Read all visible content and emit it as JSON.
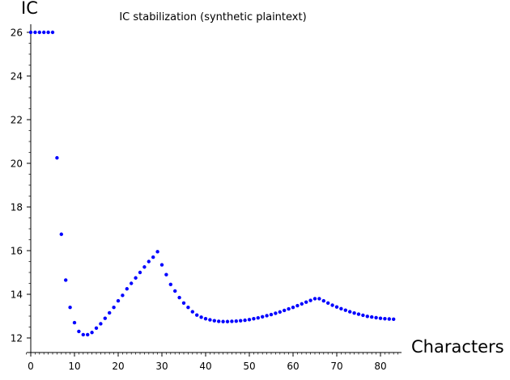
{
  "chart_data": {
    "type": "scatter",
    "title": "IC stabilization (synthetic plaintext)",
    "xlabel": "Characters",
    "ylabel": "IC",
    "xlim": [
      -1,
      84
    ],
    "ylim": [
      11.8,
      26.3
    ],
    "x_ticks": [
      0,
      10,
      20,
      30,
      40,
      50,
      60,
      70,
      80
    ],
    "y_ticks": [
      12,
      14,
      16,
      18,
      20,
      22,
      24,
      26
    ],
    "grid": false,
    "marker_color": "#0000ff",
    "series": [
      {
        "x": [
          0,
          1,
          2,
          3,
          4,
          5,
          6,
          7,
          8,
          9,
          10,
          11,
          12,
          13,
          14,
          15,
          16,
          17,
          18,
          19,
          20,
          21,
          22,
          23,
          24,
          25,
          26,
          27,
          28,
          29,
          30,
          31,
          32,
          33,
          34,
          35,
          36,
          37,
          38,
          39,
          40,
          41,
          42,
          43,
          44,
          45,
          46,
          47,
          48,
          49,
          50,
          51,
          52,
          53,
          54,
          55,
          56,
          57,
          58,
          59,
          60,
          61,
          62,
          63,
          64,
          65,
          66,
          67,
          68,
          69,
          70,
          71,
          72,
          73,
          74,
          75,
          76,
          77,
          78,
          79,
          80,
          81,
          82,
          83
        ],
        "y": [
          26.0,
          26.0,
          26.0,
          26.0,
          26.0,
          26.0,
          20.25,
          16.75,
          14.65,
          13.4,
          12.7,
          12.3,
          12.15,
          12.15,
          12.25,
          12.45,
          12.65,
          12.9,
          13.15,
          13.4,
          13.7,
          13.95,
          14.25,
          14.5,
          14.75,
          15.0,
          15.25,
          15.5,
          15.7,
          15.95,
          15.35,
          14.9,
          14.45,
          14.15,
          13.85,
          13.6,
          13.4,
          13.2,
          13.05,
          12.95,
          12.88,
          12.83,
          12.79,
          12.76,
          12.75,
          12.75,
          12.76,
          12.77,
          12.79,
          12.81,
          12.84,
          12.88,
          12.92,
          12.97,
          13.02,
          13.07,
          13.13,
          13.19,
          13.26,
          13.33,
          13.4,
          13.48,
          13.56,
          13.64,
          13.72,
          13.8,
          13.8,
          13.7,
          13.6,
          13.5,
          13.42,
          13.34,
          13.27,
          13.2,
          13.14,
          13.09,
          13.04,
          12.99,
          12.96,
          12.93,
          12.9,
          12.88,
          12.87,
          12.86
        ]
      }
    ]
  }
}
